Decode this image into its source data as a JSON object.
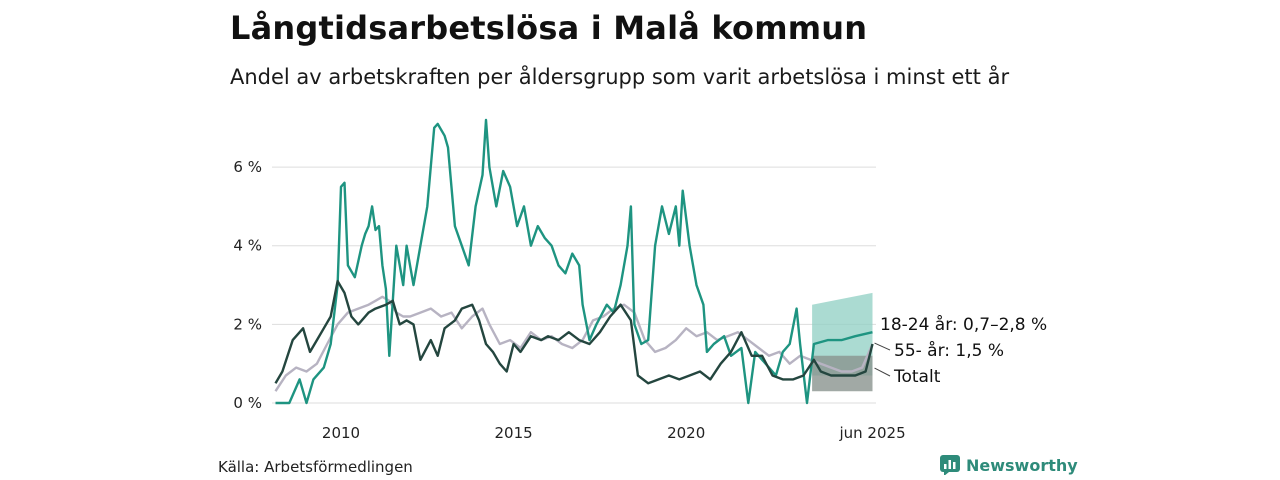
{
  "title": "Långtidsarbetslösa i Malå kommun",
  "subtitle": "Andel av arbetskraften per åldersgrupp som varit arbetslösa i minst ett år",
  "source": "Källa: Arbetsförmedlingen",
  "brand": {
    "name": "Newsworthy",
    "icon": "newsworthy-logo-icon"
  },
  "colors": {
    "youth": "#1e9481",
    "senior": "#b7b3c2",
    "total": "#24463f",
    "youth_band": "#8fcfc3",
    "total_band": "#8a938f",
    "grid": "#dddddd"
  },
  "chart_data": {
    "type": "line",
    "title": "Långtidsarbetslösa i Malå kommun",
    "subtitle": "Andel av arbetskraften per åldersgrupp som varit arbetslösa i minst ett år",
    "xlabel": "",
    "ylabel": "",
    "ylim": [
      0,
      7.3
    ],
    "xlim": [
      2008.0,
      2025.5
    ],
    "grid": true,
    "y_ticks": [
      {
        "value": 0,
        "label": "0 %"
      },
      {
        "value": 2,
        "label": "2 %"
      },
      {
        "value": 4,
        "label": "4 %"
      },
      {
        "value": 6,
        "label": "6 %"
      }
    ],
    "x_ticks": [
      {
        "value": 2010,
        "label": "2010"
      },
      {
        "value": 2015,
        "label": "2015"
      },
      {
        "value": 2020,
        "label": "2020"
      },
      {
        "value": 2025.4,
        "label": "jun 2025"
      }
    ],
    "series": [
      {
        "key": "senior",
        "name": "55- år",
        "end_label": "55- år: 1,5 %",
        "points": [
          [
            2008.1,
            0.3
          ],
          [
            2008.4,
            0.7
          ],
          [
            2008.7,
            0.9
          ],
          [
            2009.0,
            0.8
          ],
          [
            2009.3,
            1.0
          ],
          [
            2009.6,
            1.5
          ],
          [
            2009.9,
            2.0
          ],
          [
            2010.2,
            2.3
          ],
          [
            2010.5,
            2.4
          ],
          [
            2010.8,
            2.5
          ],
          [
            2011.0,
            2.6
          ],
          [
            2011.2,
            2.7
          ],
          [
            2011.4,
            2.6
          ],
          [
            2011.6,
            2.3
          ],
          [
            2011.8,
            2.2
          ],
          [
            2012.0,
            2.2
          ],
          [
            2012.3,
            2.3
          ],
          [
            2012.6,
            2.4
          ],
          [
            2012.9,
            2.2
          ],
          [
            2013.2,
            2.3
          ],
          [
            2013.5,
            1.9
          ],
          [
            2013.8,
            2.2
          ],
          [
            2014.1,
            2.4
          ],
          [
            2014.3,
            2.0
          ],
          [
            2014.6,
            1.5
          ],
          [
            2014.9,
            1.6
          ],
          [
            2015.2,
            1.4
          ],
          [
            2015.5,
            1.8
          ],
          [
            2015.8,
            1.6
          ],
          [
            2016.1,
            1.7
          ],
          [
            2016.4,
            1.5
          ],
          [
            2016.7,
            1.4
          ],
          [
            2017.0,
            1.6
          ],
          [
            2017.3,
            2.1
          ],
          [
            2017.6,
            2.2
          ],
          [
            2017.9,
            2.4
          ],
          [
            2018.2,
            2.5
          ],
          [
            2018.5,
            2.3
          ],
          [
            2018.8,
            1.6
          ],
          [
            2019.1,
            1.3
          ],
          [
            2019.4,
            1.4
          ],
          [
            2019.7,
            1.6
          ],
          [
            2020.0,
            1.9
          ],
          [
            2020.3,
            1.7
          ],
          [
            2020.6,
            1.8
          ],
          [
            2020.9,
            1.6
          ],
          [
            2021.2,
            1.7
          ],
          [
            2021.5,
            1.8
          ],
          [
            2021.8,
            1.6
          ],
          [
            2022.1,
            1.4
          ],
          [
            2022.4,
            1.2
          ],
          [
            2022.7,
            1.3
          ],
          [
            2023.0,
            1.0
          ],
          [
            2023.3,
            1.2
          ],
          [
            2023.6,
            1.1
          ],
          [
            2023.9,
            1.0
          ],
          [
            2024.2,
            0.9
          ],
          [
            2024.5,
            0.8
          ],
          [
            2024.8,
            0.8
          ],
          [
            2025.1,
            0.9
          ],
          [
            2025.4,
            1.5
          ]
        ]
      },
      {
        "key": "youth",
        "name": "18-24 år",
        "end_label": "18-24 år: 0,7–2,8 %",
        "points": [
          [
            2008.1,
            0.0
          ],
          [
            2008.5,
            0.0
          ],
          [
            2008.8,
            0.6
          ],
          [
            2009.0,
            0.0
          ],
          [
            2009.2,
            0.6
          ],
          [
            2009.5,
            0.9
          ],
          [
            2009.7,
            1.5
          ],
          [
            2009.9,
            3.0
          ],
          [
            2010.0,
            5.5
          ],
          [
            2010.1,
            5.6
          ],
          [
            2010.2,
            3.5
          ],
          [
            2010.4,
            3.2
          ],
          [
            2010.6,
            4.0
          ],
          [
            2010.7,
            4.3
          ],
          [
            2010.8,
            4.5
          ],
          [
            2010.9,
            5.0
          ],
          [
            2011.0,
            4.4
          ],
          [
            2011.1,
            4.5
          ],
          [
            2011.2,
            3.5
          ],
          [
            2011.3,
            2.9
          ],
          [
            2011.4,
            1.2
          ],
          [
            2011.6,
            4.0
          ],
          [
            2011.8,
            3.0
          ],
          [
            2011.9,
            4.0
          ],
          [
            2012.1,
            3.0
          ],
          [
            2012.3,
            4.0
          ],
          [
            2012.5,
            5.0
          ],
          [
            2012.7,
            7.0
          ],
          [
            2012.8,
            7.1
          ],
          [
            2013.0,
            6.8
          ],
          [
            2013.1,
            6.5
          ],
          [
            2013.3,
            4.5
          ],
          [
            2013.5,
            4.0
          ],
          [
            2013.7,
            3.5
          ],
          [
            2013.9,
            5.0
          ],
          [
            2014.1,
            5.8
          ],
          [
            2014.2,
            7.2
          ],
          [
            2014.3,
            6.0
          ],
          [
            2014.5,
            5.0
          ],
          [
            2014.7,
            5.9
          ],
          [
            2014.9,
            5.5
          ],
          [
            2015.1,
            4.5
          ],
          [
            2015.3,
            5.0
          ],
          [
            2015.5,
            4.0
          ],
          [
            2015.7,
            4.5
          ],
          [
            2015.9,
            4.2
          ],
          [
            2016.1,
            4.0
          ],
          [
            2016.3,
            3.5
          ],
          [
            2016.5,
            3.3
          ],
          [
            2016.7,
            3.8
          ],
          [
            2016.9,
            3.5
          ],
          [
            2017.0,
            2.5
          ],
          [
            2017.2,
            1.6
          ],
          [
            2017.4,
            2.0
          ],
          [
            2017.7,
            2.5
          ],
          [
            2017.9,
            2.3
          ],
          [
            2018.1,
            3.0
          ],
          [
            2018.3,
            4.0
          ],
          [
            2018.4,
            5.0
          ],
          [
            2018.5,
            2.0
          ],
          [
            2018.7,
            1.5
          ],
          [
            2018.9,
            1.6
          ],
          [
            2019.1,
            4.0
          ],
          [
            2019.3,
            5.0
          ],
          [
            2019.5,
            4.3
          ],
          [
            2019.7,
            5.0
          ],
          [
            2019.8,
            4.0
          ],
          [
            2019.9,
            5.4
          ],
          [
            2020.1,
            4.0
          ],
          [
            2020.3,
            3.0
          ],
          [
            2020.5,
            2.5
          ],
          [
            2020.6,
            1.3
          ],
          [
            2020.8,
            1.5
          ],
          [
            2021.1,
            1.7
          ],
          [
            2021.3,
            1.2
          ],
          [
            2021.6,
            1.4
          ],
          [
            2021.8,
            0.0
          ],
          [
            2022.0,
            1.3
          ],
          [
            2022.3,
            1.0
          ],
          [
            2022.6,
            0.7
          ],
          [
            2022.8,
            1.3
          ],
          [
            2023.0,
            1.5
          ],
          [
            2023.2,
            2.4
          ],
          [
            2023.3,
            1.5
          ],
          [
            2023.5,
            0.0
          ],
          [
            2023.7,
            1.5
          ],
          [
            2024.1,
            1.6
          ],
          [
            2024.5,
            1.6
          ],
          [
            2024.9,
            1.7
          ],
          [
            2025.4,
            1.8
          ]
        ]
      },
      {
        "key": "total",
        "name": "Totalt",
        "end_label": "Totalt",
        "points": [
          [
            2008.1,
            0.5
          ],
          [
            2008.3,
            0.8
          ],
          [
            2008.6,
            1.6
          ],
          [
            2008.9,
            1.9
          ],
          [
            2009.1,
            1.3
          ],
          [
            2009.3,
            1.6
          ],
          [
            2009.5,
            1.9
          ],
          [
            2009.7,
            2.2
          ],
          [
            2009.9,
            3.1
          ],
          [
            2010.1,
            2.8
          ],
          [
            2010.3,
            2.2
          ],
          [
            2010.5,
            2.0
          ],
          [
            2010.8,
            2.3
          ],
          [
            2011.0,
            2.4
          ],
          [
            2011.3,
            2.5
          ],
          [
            2011.5,
            2.6
          ],
          [
            2011.7,
            2.0
          ],
          [
            2011.9,
            2.1
          ],
          [
            2012.1,
            2.0
          ],
          [
            2012.3,
            1.1
          ],
          [
            2012.6,
            1.6
          ],
          [
            2012.8,
            1.2
          ],
          [
            2013.0,
            1.9
          ],
          [
            2013.3,
            2.1
          ],
          [
            2013.5,
            2.4
          ],
          [
            2013.8,
            2.5
          ],
          [
            2014.0,
            2.1
          ],
          [
            2014.2,
            1.5
          ],
          [
            2014.4,
            1.3
          ],
          [
            2014.6,
            1.0
          ],
          [
            2014.8,
            0.8
          ],
          [
            2015.0,
            1.5
          ],
          [
            2015.2,
            1.3
          ],
          [
            2015.5,
            1.7
          ],
          [
            2015.8,
            1.6
          ],
          [
            2016.0,
            1.7
          ],
          [
            2016.3,
            1.6
          ],
          [
            2016.6,
            1.8
          ],
          [
            2016.9,
            1.6
          ],
          [
            2017.2,
            1.5
          ],
          [
            2017.5,
            1.8
          ],
          [
            2017.8,
            2.2
          ],
          [
            2018.1,
            2.5
          ],
          [
            2018.4,
            2.1
          ],
          [
            2018.6,
            0.7
          ],
          [
            2018.9,
            0.5
          ],
          [
            2019.2,
            0.6
          ],
          [
            2019.5,
            0.7
          ],
          [
            2019.8,
            0.6
          ],
          [
            2020.1,
            0.7
          ],
          [
            2020.4,
            0.8
          ],
          [
            2020.7,
            0.6
          ],
          [
            2021.0,
            1.0
          ],
          [
            2021.3,
            1.3
          ],
          [
            2021.6,
            1.8
          ],
          [
            2021.9,
            1.2
          ],
          [
            2022.2,
            1.2
          ],
          [
            2022.5,
            0.7
          ],
          [
            2022.8,
            0.6
          ],
          [
            2023.1,
            0.6
          ],
          [
            2023.4,
            0.7
          ],
          [
            2023.7,
            1.1
          ],
          [
            2023.9,
            0.8
          ],
          [
            2024.2,
            0.7
          ],
          [
            2024.6,
            0.7
          ],
          [
            2024.9,
            0.7
          ],
          [
            2025.2,
            0.8
          ],
          [
            2025.4,
            1.5
          ]
        ]
      }
    ],
    "bands": [
      {
        "key": "youth",
        "x_start": 2023.65,
        "x_end": 2025.4,
        "low": 0.7,
        "high_start": 2.5,
        "high_end": 2.8
      },
      {
        "key": "total",
        "x_start": 2023.65,
        "x_end": 2025.4,
        "low": 0.3,
        "high_start": 1.2,
        "high_end": 1.2
      }
    ]
  }
}
